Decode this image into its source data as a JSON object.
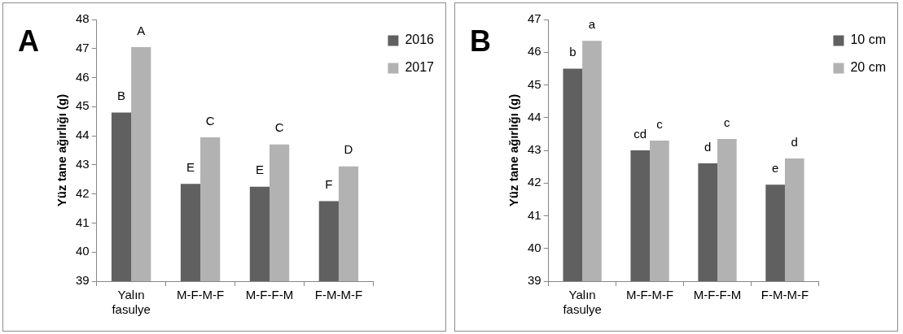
{
  "chart_data": [
    {
      "type": "bar",
      "title": "A",
      "ylabel": "Yüz tane ağırlığı (g)",
      "categories": [
        "Yalın fasulye",
        "M-F-M-F",
        "M-F-F-M",
        "F-M-M-F"
      ],
      "series": [
        {
          "name": "2016",
          "color": "#606060",
          "values": [
            44.8,
            42.35,
            42.25,
            41.75
          ],
          "value_labels": [
            "B",
            "E",
            "E",
            "F"
          ]
        },
        {
          "name": "2017",
          "color": "#b2b2b2",
          "values": [
            47.05,
            43.95,
            43.7,
            42.95
          ],
          "value_labels": [
            "A",
            "C",
            "C",
            "D"
          ]
        }
      ],
      "ylim": [
        39,
        48
      ],
      "yticks": [
        39,
        40,
        41,
        42,
        43,
        44,
        45,
        46,
        47,
        48
      ],
      "grid": false,
      "legend": "top right"
    },
    {
      "type": "bar",
      "title": "B",
      "ylabel": "Yüz tane ağırlığı (g)",
      "categories": [
        "Yalın fasulye",
        "M-F-M-F",
        "M-F-F-M",
        "F-M-M-F"
      ],
      "series": [
        {
          "name": "10 cm",
          "color": "#606060",
          "values": [
            45.5,
            43.0,
            42.6,
            41.95
          ],
          "value_labels": [
            "b",
            "cd",
            "d",
            "e"
          ]
        },
        {
          "name": "20 cm",
          "color": "#b2b2b2",
          "values": [
            46.35,
            43.3,
            43.35,
            42.75
          ],
          "value_labels": [
            "a",
            "c",
            "c",
            "d"
          ]
        }
      ],
      "ylim": [
        39,
        47
      ],
      "yticks": [
        39,
        40,
        41,
        42,
        43,
        44,
        45,
        46,
        47
      ],
      "grid": false,
      "legend": "top right"
    }
  ]
}
